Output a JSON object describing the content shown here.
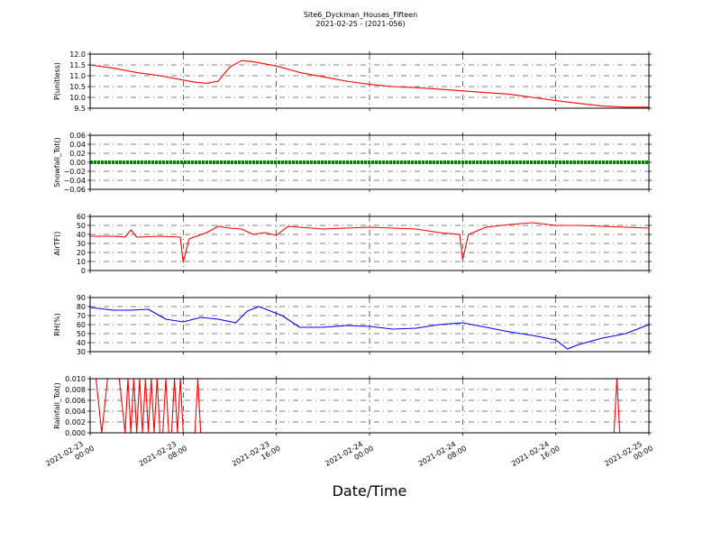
{
  "header": {
    "title": "Site6_Dyckman_Houses_Fifteen",
    "subtitle": "2021-02-25 - (2021-056)"
  },
  "xaxis": {
    "label": "Date/Time",
    "ticks": [
      {
        "h": 0,
        "line1": "2021-02-23",
        "line2": "00:00"
      },
      {
        "h": 8,
        "line1": "2021-02-23",
        "line2": "08:00"
      },
      {
        "h": 16,
        "line1": "2021-02-23",
        "line2": "16:00"
      },
      {
        "h": 24,
        "line1": "2021-02-24",
        "line2": "00:00"
      },
      {
        "h": 32,
        "line1": "2021-02-24",
        "line2": "08:00"
      },
      {
        "h": 40,
        "line1": "2021-02-24",
        "line2": "16:00"
      },
      {
        "h": 48,
        "line1": "2021-02-25",
        "line2": "00:00"
      }
    ]
  },
  "chart_data": [
    {
      "type": "line",
      "ylabel": "P(unitless)",
      "color": "#ff0000",
      "grid": true,
      "x_range": [
        "2021-02-23 00:00",
        "2021-02-25 00:00"
      ],
      "ylim": [
        9.5,
        12.0
      ],
      "yticks": [
        "9.5",
        "10.0",
        "10.5",
        "11.0",
        "11.5",
        "12.0"
      ],
      "x": [
        "2021-02-23 00:00",
        "2021-02-23 02:00",
        "2021-02-23 04:00",
        "2021-02-23 06:00",
        "2021-02-23 08:00",
        "2021-02-23 09:00",
        "2021-02-23 10:00",
        "2021-02-23 11:00",
        "2021-02-23 12:00",
        "2021-02-23 13:00",
        "2021-02-23 14:00",
        "2021-02-23 16:00",
        "2021-02-23 18:00",
        "2021-02-23 20:00",
        "2021-02-23 22:00",
        "2021-02-24 00:00",
        "2021-02-24 02:00",
        "2021-02-24 04:00",
        "2021-02-24 06:00",
        "2021-02-24 08:00",
        "2021-02-24 10:00",
        "2021-02-24 12:00",
        "2021-02-24 14:00",
        "2021-02-24 16:00",
        "2021-02-24 18:00",
        "2021-02-24 20:00",
        "2021-02-24 22:00",
        "2021-02-25 00:00"
      ],
      "values": [
        11.5,
        11.35,
        11.15,
        11.0,
        10.8,
        10.7,
        10.65,
        10.75,
        11.4,
        11.7,
        11.65,
        11.45,
        11.15,
        10.95,
        10.75,
        10.6,
        10.5,
        10.45,
        10.38,
        10.3,
        10.22,
        10.15,
        10.0,
        9.85,
        9.72,
        9.6,
        9.55,
        9.55
      ]
    },
    {
      "type": "scatter",
      "ylabel": "Snowfall_Tot()",
      "color": "#008000",
      "grid": true,
      "x_range": [
        "2021-02-23 00:00",
        "2021-02-25 00:00"
      ],
      "ylim": [
        -0.06,
        0.06
      ],
      "yticks": [
        "−0.06",
        "−0.04",
        "−0.02",
        "0.00",
        "0.02",
        "0.04",
        "0.06"
      ],
      "x": [
        "2021-02-23 00:00",
        "2021-02-25 00:00"
      ],
      "values": [
        0.0,
        0.0
      ]
    },
    {
      "type": "line",
      "ylabel": "AirTF()",
      "color": "#ff0000",
      "grid": true,
      "x_range": [
        "2021-02-23 00:00",
        "2021-02-25 00:00"
      ],
      "ylim": [
        0,
        60
      ],
      "yticks": [
        "0",
        "10",
        "20",
        "30",
        "40",
        "50",
        "60"
      ],
      "x": [
        "2021-02-23 00:00",
        "2021-02-23 02:00",
        "2021-02-23 03:00",
        "2021-02-23 03:30",
        "2021-02-23 04:00",
        "2021-02-23 06:00",
        "2021-02-23 07:45",
        "2021-02-23 08:00",
        "2021-02-23 08:30",
        "2021-02-23 10:00",
        "2021-02-23 11:00",
        "2021-02-23 12:00",
        "2021-02-23 13:00",
        "2021-02-23 14:00",
        "2021-02-23 15:00",
        "2021-02-23 16:00",
        "2021-02-23 17:00",
        "2021-02-23 18:00",
        "2021-02-23 20:00",
        "2021-02-23 22:00",
        "2021-02-24 00:00",
        "2021-02-24 02:00",
        "2021-02-24 04:00",
        "2021-02-24 06:00",
        "2021-02-24 07:45",
        "2021-02-24 08:00",
        "2021-02-24 08:30",
        "2021-02-24 10:00",
        "2021-02-24 12:00",
        "2021-02-24 14:00",
        "2021-02-24 16:00",
        "2021-02-24 18:00",
        "2021-02-24 20:00",
        "2021-02-24 22:00",
        "2021-02-25 00:00"
      ],
      "values": [
        38,
        38,
        37,
        45,
        37,
        38,
        37,
        9,
        35,
        42,
        49,
        47,
        46,
        40,
        42,
        39,
        49,
        48,
        46,
        47,
        48,
        47,
        46,
        42,
        40,
        12,
        40,
        48,
        51,
        53,
        50,
        50,
        49,
        48,
        47
      ]
    },
    {
      "type": "line",
      "ylabel": "RH(%)",
      "color": "#0000ff",
      "grid": true,
      "x_range": [
        "2021-02-23 00:00",
        "2021-02-25 00:00"
      ],
      "ylim": [
        30,
        90
      ],
      "yticks": [
        "30",
        "40",
        "50",
        "60",
        "70",
        "80",
        "90"
      ],
      "x": [
        "2021-02-23 00:00",
        "2021-02-23 02:00",
        "2021-02-23 03:30",
        "2021-02-23 05:00",
        "2021-02-23 06:30",
        "2021-02-23 08:00",
        "2021-02-23 09:30",
        "2021-02-23 11:00",
        "2021-02-23 12:30",
        "2021-02-23 13:30",
        "2021-02-23 14:30",
        "2021-02-23 16:30",
        "2021-02-23 18:00",
        "2021-02-23 20:00",
        "2021-02-23 22:00",
        "2021-02-24 00:00",
        "2021-02-24 02:00",
        "2021-02-24 04:00",
        "2021-02-24 06:00",
        "2021-02-24 08:00",
        "2021-02-24 10:00",
        "2021-02-24 12:00",
        "2021-02-24 14:00",
        "2021-02-24 16:00",
        "2021-02-24 17:00",
        "2021-02-24 18:00",
        "2021-02-24 20:00",
        "2021-02-24 22:00",
        "2021-02-25 00:00"
      ],
      "values": [
        79,
        76,
        76,
        77,
        66,
        63,
        68,
        66,
        62,
        75,
        80,
        70,
        57,
        57,
        59,
        58,
        55,
        56,
        60,
        62,
        57,
        52,
        48,
        43,
        33,
        38,
        45,
        50,
        60
      ]
    },
    {
      "type": "line",
      "ylabel": "Rainfall_Tot()",
      "color": "#ff0000",
      "grid": true,
      "x_range": [
        "2021-02-23 00:00",
        "2021-02-25 00:00"
      ],
      "ylim": [
        0.0,
        0.01
      ],
      "yticks": [
        "0.000",
        "0.002",
        "0.004",
        "0.006",
        "0.008",
        "0.010"
      ],
      "x": [
        "2021-02-23 00:00",
        "2021-02-23 00:30",
        "2021-02-23 01:00",
        "2021-02-23 01:30",
        "2021-02-23 02:00",
        "2021-02-23 02:30",
        "2021-02-23 03:00",
        "2021-02-23 03:15",
        "2021-02-23 03:30",
        "2021-02-23 03:45",
        "2021-02-23 04:00",
        "2021-02-23 04:15",
        "2021-02-23 04:30",
        "2021-02-23 04:45",
        "2021-02-23 05:00",
        "2021-02-23 05:15",
        "2021-02-23 05:30",
        "2021-02-23 05:45",
        "2021-02-23 06:00",
        "2021-02-23 06:15",
        "2021-02-23 06:30",
        "2021-02-23 06:45",
        "2021-02-23 07:00",
        "2021-02-23 07:15",
        "2021-02-23 07:30",
        "2021-02-23 07:45",
        "2021-02-23 08:00",
        "2021-02-23 08:30",
        "2021-02-23 09:00",
        "2021-02-23 09:15",
        "2021-02-23 09:30",
        "2021-02-23 10:00",
        "2021-02-24 21:00",
        "2021-02-24 21:15",
        "2021-02-24 21:30",
        "2021-02-25 00:00"
      ],
      "values": [
        0.01,
        0.01,
        0.0,
        0.01,
        0.01,
        0.01,
        0.0,
        0.01,
        0.0,
        0.01,
        0.0,
        0.01,
        0.0,
        0.01,
        0.0,
        0.01,
        0.0,
        0.01,
        0.0,
        0.0,
        0.01,
        0.0,
        0.0,
        0.01,
        0.0,
        0.01,
        0.0,
        0.0,
        0.0,
        0.01,
        0.0,
        0.0,
        0.0,
        0.01,
        0.0,
        0.0
      ]
    }
  ]
}
